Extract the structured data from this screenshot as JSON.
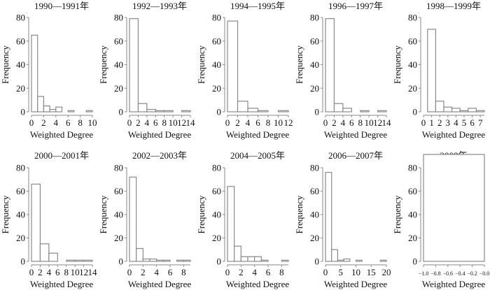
{
  "chart_data": [
    {
      "type": "bar",
      "title": "1990—1991年",
      "xlabel": "Weighted Degree",
      "ylabel": "Frequency",
      "bin_edges": [
        0,
        1,
        2,
        3,
        4,
        5,
        6,
        7,
        8,
        9,
        10
      ],
      "values": [
        65,
        13,
        5,
        2,
        4,
        0,
        1,
        0,
        0,
        1
      ],
      "xlim": [
        0,
        10
      ],
      "ylim": [
        0,
        80
      ],
      "xticks": [
        "0",
        "2",
        "4",
        "6",
        "8",
        "10"
      ],
      "xtick_values": [
        0,
        2,
        4,
        6,
        8,
        10
      ],
      "yticks": [
        0,
        20,
        40,
        60,
        80
      ]
    },
    {
      "type": "bar",
      "title": "1992—1993年",
      "xlabel": "Weighted Degree",
      "ylabel": "Frequency",
      "bin_edges": [
        0,
        2,
        4,
        6,
        8,
        10,
        12,
        14
      ],
      "values": [
        79,
        7,
        2,
        1,
        1,
        0,
        1
      ],
      "xlim": [
        0,
        14
      ],
      "ylim": [
        0,
        80
      ],
      "xticks": [
        "0",
        "2",
        "4",
        "6",
        "8",
        "10",
        "12",
        "14"
      ],
      "xtick_values": [
        0,
        2,
        4,
        6,
        8,
        10,
        12,
        14
      ],
      "yticks": [
        0,
        20,
        40,
        60,
        80
      ]
    },
    {
      "type": "bar",
      "title": "1994—1995年",
      "xlabel": "Weighted Degree",
      "ylabel": "Frequency",
      "bin_edges": [
        0,
        2,
        4,
        6,
        8,
        10,
        12
      ],
      "values": [
        77,
        9,
        3,
        1,
        0,
        1
      ],
      "xlim": [
        0,
        12
      ],
      "ylim": [
        0,
        80
      ],
      "xticks": [
        "0",
        "2",
        "4",
        "6",
        "8",
        "10",
        "12"
      ],
      "xtick_values": [
        0,
        2,
        4,
        6,
        8,
        10,
        12
      ],
      "yticks": [
        0,
        20,
        40,
        60,
        80
      ]
    },
    {
      "type": "bar",
      "title": "1996—1997年",
      "xlabel": "Weighted Degree",
      "ylabel": "Frequency",
      "bin_edges": [
        0,
        2,
        4,
        6,
        8,
        10,
        12,
        14
      ],
      "values": [
        79,
        7,
        3,
        0,
        1,
        0,
        1
      ],
      "xlim": [
        0,
        14
      ],
      "ylim": [
        0,
        80
      ],
      "xticks": [
        "0",
        "2",
        "4",
        "6",
        "8",
        "10",
        "12",
        "14"
      ],
      "xtick_values": [
        0,
        2,
        4,
        6,
        8,
        10,
        12,
        14
      ],
      "yticks": [
        0,
        20,
        40,
        60,
        80
      ]
    },
    {
      "type": "bar",
      "title": "1998—1999年",
      "xlabel": "Weighted Degree",
      "ylabel": "Frequency",
      "bin_edges": [
        0.5,
        1.5,
        2.5,
        3.5,
        4.5,
        5.5,
        6.5,
        7.5
      ],
      "values": [
        70,
        9,
        4,
        3,
        1,
        3,
        1
      ],
      "xlim": [
        0,
        7.5
      ],
      "ylim": [
        0,
        80
      ],
      "xticks": [
        "0",
        "1",
        "2",
        "3",
        "4",
        "5",
        "6",
        "7"
      ],
      "xtick_values": [
        0,
        1,
        2,
        3,
        4,
        5,
        6,
        7
      ],
      "yticks": [
        0,
        20,
        40,
        60,
        80
      ]
    },
    {
      "type": "bar",
      "title": "2000—2001年",
      "xlabel": "Weighted Degree",
      "ylabel": "Frequency",
      "bin_edges": [
        0,
        2,
        4,
        6,
        8,
        10,
        12,
        14
      ],
      "values": [
        66,
        15,
        7,
        0,
        1,
        1,
        1
      ],
      "xlim": [
        0,
        14
      ],
      "ylim": [
        0,
        80
      ],
      "xticks": [
        "0",
        "2",
        "4",
        "6",
        "8",
        "10",
        "12",
        "14"
      ],
      "xtick_values": [
        0,
        2,
        4,
        6,
        8,
        10,
        12,
        14
      ],
      "yticks": [
        0,
        20,
        40,
        60,
        80
      ]
    },
    {
      "type": "bar",
      "title": "2002—2003年",
      "xlabel": "Weighted Degree",
      "ylabel": "Frequency",
      "bin_edges": [
        0,
        1,
        2,
        3,
        4,
        5,
        6,
        7,
        8,
        9
      ],
      "values": [
        72,
        11,
        2,
        2,
        1,
        1,
        0,
        1,
        1
      ],
      "xlim": [
        0,
        9
      ],
      "ylim": [
        0,
        80
      ],
      "xticks": [
        "0",
        "2",
        "4",
        "6",
        "8"
      ],
      "xtick_values": [
        0,
        2,
        4,
        6,
        8
      ],
      "yticks": [
        0,
        20,
        40,
        60,
        80
      ]
    },
    {
      "type": "bar",
      "title": "2004—2005年",
      "xlabel": "Weighted Degree",
      "ylabel": "Frequency",
      "bin_edges": [
        0,
        1,
        2,
        3,
        4,
        5,
        6,
        7,
        8,
        9
      ],
      "values": [
        64,
        13,
        4,
        4,
        4,
        1,
        0,
        0,
        1
      ],
      "xlim": [
        0,
        9
      ],
      "ylim": [
        0,
        80
      ],
      "xticks": [
        "0",
        "2",
        "4",
        "6",
        "8"
      ],
      "xtick_values": [
        0,
        2,
        4,
        6,
        8
      ],
      "yticks": [
        0,
        20,
        40,
        60,
        80
      ]
    },
    {
      "type": "bar",
      "title": "2006—2007年",
      "xlabel": "Weighted Degree",
      "ylabel": "Frequency",
      "bin_edges": [
        0,
        2,
        4,
        6,
        8,
        10,
        12,
        14,
        16,
        18,
        20
      ],
      "values": [
        76,
        10,
        1,
        2,
        0,
        1,
        0,
        0,
        0,
        1
      ],
      "xlim": [
        0,
        20
      ],
      "ylim": [
        0,
        80
      ],
      "xticks": [
        "0",
        "5",
        "10",
        "15",
        "20"
      ],
      "xtick_values": [
        0,
        5,
        10,
        15,
        20
      ],
      "yticks": [
        0,
        20,
        40,
        60,
        80
      ]
    },
    {
      "type": "bar",
      "title": "2008年",
      "xlabel": "Weighted Degree",
      "ylabel": "Frequency",
      "bin_edges": [
        -1,
        0
      ],
      "values": [
        90
      ],
      "xlim": [
        -1,
        0
      ],
      "ylim": [
        0,
        80
      ],
      "xticks": [
        "−1.0",
        "−0.8",
        "−0.6",
        "−0.4",
        "−0.2",
        "−0.0"
      ],
      "xtick_values": [
        -1,
        -0.8,
        -0.6,
        -0.4,
        -0.2,
        0
      ],
      "yticks": [
        0,
        20,
        40,
        60,
        80
      ]
    }
  ],
  "colors": {
    "bar_fill": "#ffffff",
    "bar_stroke": "#8a8a8a",
    "axis": "#8a8a8a",
    "text": "#111111"
  }
}
